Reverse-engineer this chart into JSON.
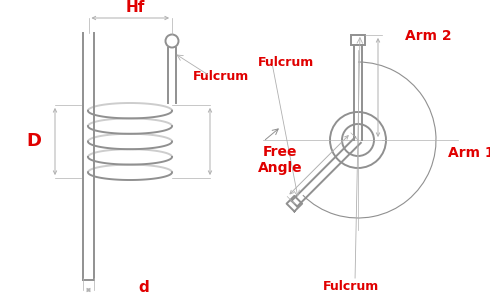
{
  "bg_color": "#ffffff",
  "line_color": "#909090",
  "dim_color": "#b0b0b0",
  "red_color": "#e00000",
  "label_d": "d",
  "label_D": "D",
  "label_Hf": "Hf",
  "label_Fulcrum": "Fulcrum",
  "label_FreeAngle": "Free\nAngle",
  "label_Arm1": "Arm 1",
  "label_Arm2": "Arm 2",
  "figsize": [
    4.9,
    3.08
  ],
  "dpi": 100
}
